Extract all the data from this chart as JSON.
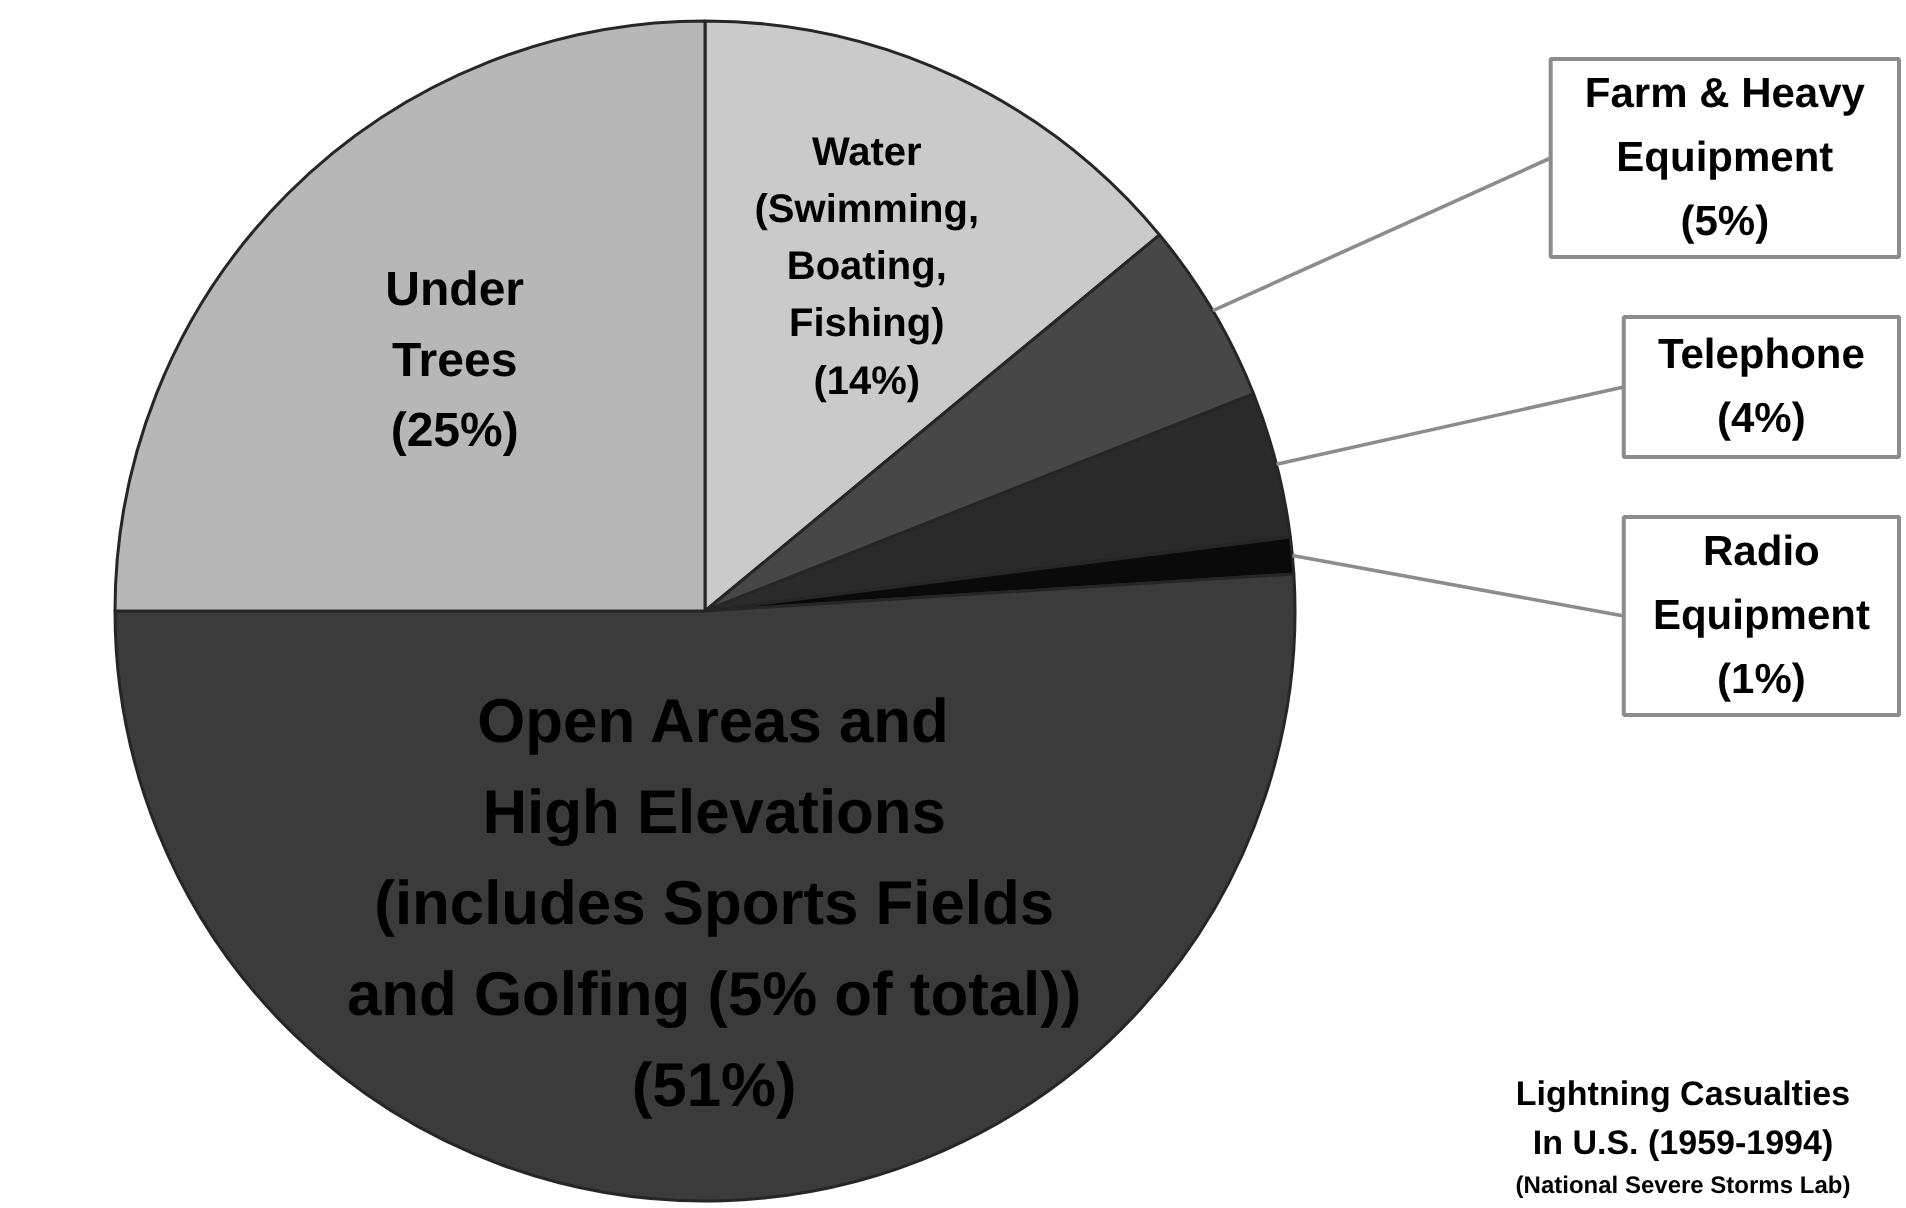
{
  "chart_data": {
    "type": "pie",
    "title": "Lightning Casualties\nIn U.S. (1959-1994)",
    "categories": [
      "Water\n(Swimming,\nBoating,\nFishing)",
      "Farm & Heavy\nEquipment",
      "Telephone",
      "Radio\nEquipment",
      "Open Areas and\nHigh Elevations\n(includes Sports Fields\nand Golfing (5% of total))",
      "Under\nTrees"
    ],
    "values": [
      14,
      5,
      4,
      1,
      51,
      25
    ],
    "colors": [
      "#cacaca",
      "#474747",
      "#2a2a2a",
      "#0a0a0a",
      "#3b3b3b",
      "#b7b7b7"
    ],
    "value_labels": [
      "(14%)",
      "(5%)",
      "(4%)",
      "(1%)",
      "(51%)",
      "(25%)"
    ],
    "annotations": [
      "(National Severe Storms Lab)"
    ]
  }
}
